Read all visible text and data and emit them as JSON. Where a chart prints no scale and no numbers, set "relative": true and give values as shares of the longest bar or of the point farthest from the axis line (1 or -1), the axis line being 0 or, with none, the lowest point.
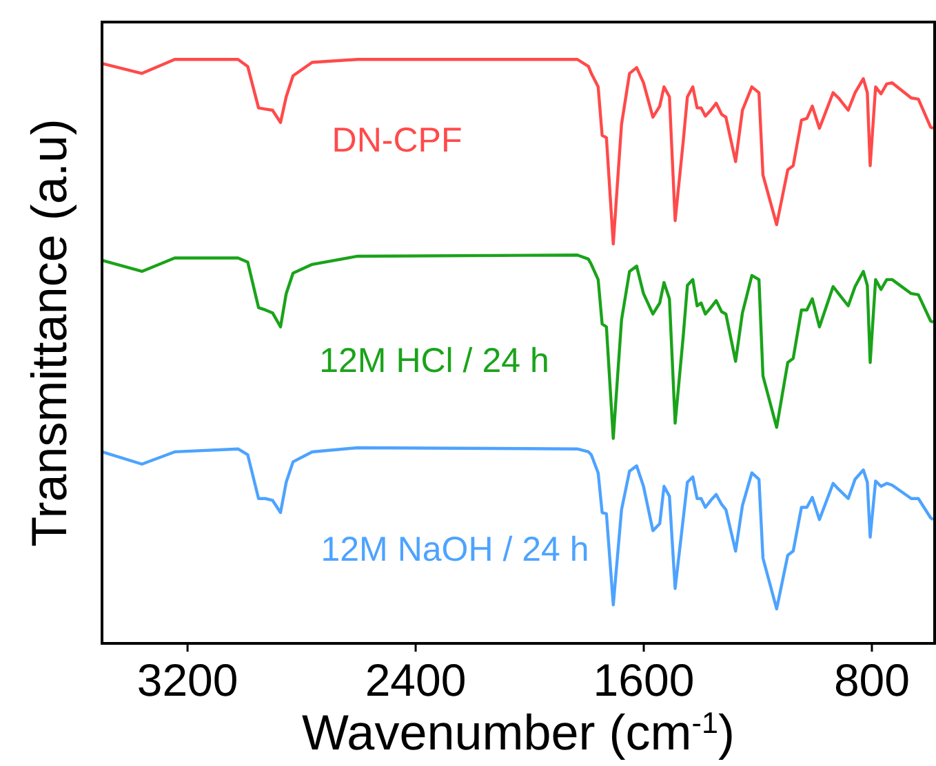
{
  "chart_data": {
    "type": "line",
    "xlabel": "Wavenumber (cm$^{-1}$)",
    "ylabel": "Transmittance (a.u)",
    "relative": true,
    "tick_labels": "x",
    "grid": false,
    "marker": "none",
    "line_style": "solid",
    "x": [
      3500,
      3360,
      3245,
      3023,
      2989,
      2951,
      2927,
      2902,
      2874,
      2854,
      2830,
      2763,
      2604,
      1833,
      1794,
      1784,
      1760,
      1746,
      1731,
      1707,
      1678,
      1650,
      1625,
      1601,
      1568,
      1544,
      1529,
      1510,
      1490,
      1462,
      1447,
      1428,
      1413,
      1399,
      1384,
      1365,
      1346,
      1327,
      1312,
      1278,
      1254,
      1221,
      1196,
      1182,
      1134,
      1095,
      1076,
      1047,
      1028,
      1009,
      984,
      936,
      917,
      883,
      859,
      830,
      816,
      806,
      787,
      768,
      748,
      729,
      662,
      637,
      594,
      585
    ],
    "xlim": [
      3500,
      580
    ],
    "xticks": [
      3200,
      2400,
      1600,
      800
    ],
    "series": [
      {
        "name": "DN-CPF",
        "color": "#ff4a4a",
        "values": [
          0.993,
          0.976,
          1.0,
          1.0,
          0.988,
          0.917,
          0.915,
          0.913,
          0.892,
          0.936,
          0.972,
          0.995,
          1.0,
          1.0,
          0.988,
          0.976,
          0.953,
          0.87,
          0.866,
          0.684,
          0.889,
          0.976,
          0.986,
          0.96,
          0.901,
          0.92,
          0.953,
          0.936,
          0.724,
          0.858,
          0.936,
          0.953,
          0.917,
          0.917,
          0.903,
          0.913,
          0.925,
          0.906,
          0.901,
          0.825,
          0.913,
          0.953,
          0.943,
          0.802,
          0.717,
          0.811,
          0.818,
          0.896,
          0.899,
          0.92,
          0.882,
          0.943,
          0.934,
          0.913,
          0.943,
          0.967,
          0.943,
          0.818,
          0.953,
          0.941,
          0.958,
          0.96,
          0.934,
          0.932,
          0.884,
          0.882
        ]
      },
      {
        "name": "12M HCl / 24 h",
        "color": "#1aa31a",
        "values": [
          0.656,
          0.637,
          0.66,
          0.66,
          0.653,
          0.575,
          0.571,
          0.566,
          0.542,
          0.599,
          0.634,
          0.649,
          0.663,
          0.665,
          0.658,
          0.649,
          0.623,
          0.547,
          0.542,
          0.351,
          0.554,
          0.637,
          0.646,
          0.599,
          0.564,
          0.583,
          0.618,
          0.59,
          0.377,
          0.524,
          0.613,
          0.623,
          0.578,
          0.583,
          0.564,
          0.575,
          0.587,
          0.568,
          0.564,
          0.483,
          0.566,
          0.63,
          0.623,
          0.458,
          0.37,
          0.481,
          0.488,
          0.571,
          0.571,
          0.59,
          0.542,
          0.611,
          0.599,
          0.578,
          0.611,
          0.637,
          0.613,
          0.481,
          0.623,
          0.606,
          0.623,
          0.623,
          0.599,
          0.597,
          0.552,
          0.55
        ]
      },
      {
        "name": "12M NaOH / 24 h",
        "color": "#4da3ff",
        "values": [
          0.328,
          0.307,
          0.328,
          0.333,
          0.323,
          0.248,
          0.248,
          0.245,
          0.224,
          0.276,
          0.311,
          0.328,
          0.335,
          0.333,
          0.328,
          0.323,
          0.292,
          0.224,
          0.222,
          0.066,
          0.229,
          0.295,
          0.304,
          0.269,
          0.193,
          0.205,
          0.269,
          0.252,
          0.094,
          0.212,
          0.276,
          0.285,
          0.248,
          0.248,
          0.233,
          0.245,
          0.255,
          0.238,
          0.229,
          0.158,
          0.236,
          0.292,
          0.281,
          0.146,
          0.059,
          0.151,
          0.158,
          0.233,
          0.233,
          0.25,
          0.212,
          0.274,
          0.264,
          0.248,
          0.281,
          0.297,
          0.276,
          0.182,
          0.278,
          0.269,
          0.274,
          0.271,
          0.248,
          0.248,
          0.215,
          0.212
        ]
      }
    ]
  }
}
